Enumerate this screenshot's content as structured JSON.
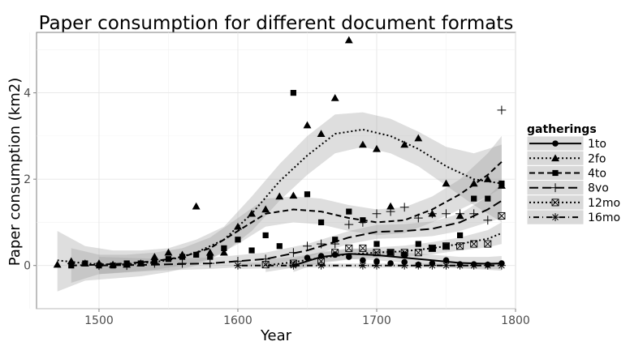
{
  "chart_data": {
    "type": "scatter",
    "title": "Paper consumption for different document formats",
    "xlabel": "Year",
    "ylabel": "Paper consumption (km2)",
    "xlim": [
      1455,
      1800
    ],
    "ylim": [
      -1.0,
      5.4
    ],
    "xticks": [
      1500,
      1600,
      1700,
      1800
    ],
    "yticks": [
      0,
      2,
      4
    ],
    "grid": true,
    "smoothing": "loess with confidence band",
    "legend": {
      "title": "gatherings",
      "placement": "right",
      "entries": [
        "1to",
        "2fo",
        "4to",
        "8vo",
        "12mo",
        "16mo"
      ]
    },
    "series": [
      {
        "name": "1to",
        "marker": "circle",
        "line": "solid",
        "color": "#000000",
        "points": [
          [
            1650,
            0.18
          ],
          [
            1660,
            0.22
          ],
          [
            1670,
            0.25
          ],
          [
            1680,
            0.2
          ],
          [
            1690,
            0.12
          ],
          [
            1700,
            0.1
          ],
          [
            1710,
            0.05
          ],
          [
            1720,
            0.08
          ],
          [
            1730,
            0.02
          ],
          [
            1740,
            0.05
          ],
          [
            1750,
            0.12
          ],
          [
            1760,
            0.03
          ],
          [
            1770,
            0.03
          ],
          [
            1780,
            0.02
          ],
          [
            1790,
            0.05
          ]
        ],
        "smooth": [
          [
            1640,
            0.0
          ],
          [
            1660,
            0.2
          ],
          [
            1680,
            0.27
          ],
          [
            1700,
            0.24
          ],
          [
            1720,
            0.18
          ],
          [
            1740,
            0.12
          ],
          [
            1760,
            0.06
          ],
          [
            1780,
            0.04
          ],
          [
            1790,
            0.05
          ]
        ],
        "band": [
          [
            1640,
            -0.15,
            0.15
          ],
          [
            1660,
            0.08,
            0.32
          ],
          [
            1680,
            0.15,
            0.4
          ],
          [
            1700,
            0.12,
            0.36
          ],
          [
            1720,
            0.06,
            0.3
          ],
          [
            1740,
            0.0,
            0.25
          ],
          [
            1760,
            -0.07,
            0.2
          ],
          [
            1780,
            -0.1,
            0.2
          ],
          [
            1790,
            -0.12,
            0.22
          ]
        ]
      },
      {
        "name": "2fo",
        "marker": "triangle",
        "line": "dotted",
        "color": "#000000",
        "points": [
          [
            1470,
            0.02
          ],
          [
            1480,
            0.1
          ],
          [
            1490,
            0.05
          ],
          [
            1500,
            0.05
          ],
          [
            1510,
            0.02
          ],
          [
            1520,
            0.02
          ],
          [
            1530,
            0.05
          ],
          [
            1540,
            0.2
          ],
          [
            1550,
            0.3
          ],
          [
            1560,
            0.25
          ],
          [
            1570,
            1.37
          ],
          [
            1580,
            0.3
          ],
          [
            1590,
            0.3
          ],
          [
            1600,
            0.9
          ],
          [
            1610,
            1.2
          ],
          [
            1620,
            1.3
          ],
          [
            1630,
            1.6
          ],
          [
            1640,
            1.62
          ],
          [
            1650,
            3.25
          ],
          [
            1660,
            3.05
          ],
          [
            1670,
            3.88
          ],
          [
            1680,
            5.22
          ],
          [
            1690,
            2.8
          ],
          [
            1700,
            2.7
          ],
          [
            1710,
            1.37
          ],
          [
            1720,
            2.8
          ],
          [
            1730,
            2.95
          ],
          [
            1740,
            1.2
          ],
          [
            1750,
            1.9
          ],
          [
            1760,
            1.15
          ],
          [
            1770,
            1.9
          ],
          [
            1780,
            2.0
          ],
          [
            1790,
            1.85
          ]
        ],
        "smooth": [
          [
            1470,
            0.12
          ],
          [
            1490,
            0.05
          ],
          [
            1510,
            0.02
          ],
          [
            1530,
            0.05
          ],
          [
            1550,
            0.12
          ],
          [
            1570,
            0.3
          ],
          [
            1590,
            0.6
          ],
          [
            1610,
            1.2
          ],
          [
            1630,
            1.95
          ],
          [
            1650,
            2.55
          ],
          [
            1670,
            3.05
          ],
          [
            1690,
            3.15
          ],
          [
            1710,
            3.0
          ],
          [
            1730,
            2.7
          ],
          [
            1750,
            2.3
          ],
          [
            1770,
            2.0
          ],
          [
            1790,
            1.9
          ]
        ],
        "band": [
          [
            1470,
            -0.6,
            0.8
          ],
          [
            1490,
            -0.35,
            0.45
          ],
          [
            1510,
            -0.3,
            0.35
          ],
          [
            1530,
            -0.25,
            0.35
          ],
          [
            1550,
            -0.15,
            0.4
          ],
          [
            1570,
            0.0,
            0.6
          ],
          [
            1590,
            0.3,
            0.9
          ],
          [
            1610,
            0.8,
            1.6
          ],
          [
            1630,
            1.5,
            2.35
          ],
          [
            1650,
            2.1,
            3.0
          ],
          [
            1670,
            2.6,
            3.5
          ],
          [
            1690,
            2.75,
            3.55
          ],
          [
            1710,
            2.6,
            3.4
          ],
          [
            1730,
            2.3,
            3.1
          ],
          [
            1750,
            1.85,
            2.75
          ],
          [
            1770,
            1.4,
            2.6
          ],
          [
            1790,
            1.0,
            2.8
          ]
        ]
      },
      {
        "name": "4to",
        "marker": "square",
        "line": "dashed",
        "color": "#000000",
        "points": [
          [
            1480,
            0.0
          ],
          [
            1490,
            0.05
          ],
          [
            1500,
            0.0
          ],
          [
            1510,
            0.0
          ],
          [
            1520,
            0.05
          ],
          [
            1530,
            0.05
          ],
          [
            1540,
            0.1
          ],
          [
            1550,
            0.15
          ],
          [
            1560,
            0.2
          ],
          [
            1570,
            0.25
          ],
          [
            1580,
            0.2
          ],
          [
            1590,
            0.4
          ],
          [
            1600,
            0.6
          ],
          [
            1610,
            0.35
          ],
          [
            1620,
            0.7
          ],
          [
            1630,
            0.45
          ],
          [
            1640,
            4.0
          ],
          [
            1650,
            1.65
          ],
          [
            1660,
            1.0
          ],
          [
            1670,
            0.6
          ],
          [
            1680,
            1.25
          ],
          [
            1690,
            1.05
          ],
          [
            1700,
            0.5
          ],
          [
            1710,
            0.3
          ],
          [
            1720,
            0.25
          ],
          [
            1730,
            0.5
          ],
          [
            1740,
            0.4
          ],
          [
            1750,
            0.45
          ],
          [
            1760,
            0.7
          ],
          [
            1770,
            1.55
          ],
          [
            1780,
            1.55
          ],
          [
            1790,
            1.9
          ]
        ],
        "smooth": [
          [
            1480,
            0.0
          ],
          [
            1500,
            0.02
          ],
          [
            1520,
            0.05
          ],
          [
            1540,
            0.1
          ],
          [
            1560,
            0.2
          ],
          [
            1580,
            0.4
          ],
          [
            1600,
            0.8
          ],
          [
            1620,
            1.2
          ],
          [
            1640,
            1.3
          ],
          [
            1660,
            1.25
          ],
          [
            1680,
            1.1
          ],
          [
            1700,
            1.0
          ],
          [
            1720,
            1.05
          ],
          [
            1740,
            1.3
          ],
          [
            1760,
            1.65
          ],
          [
            1780,
            2.1
          ],
          [
            1790,
            2.4
          ]
        ],
        "band": [
          [
            1480,
            -0.4,
            0.4
          ],
          [
            1500,
            -0.2,
            0.25
          ],
          [
            1520,
            -0.15,
            0.25
          ],
          [
            1540,
            -0.1,
            0.3
          ],
          [
            1560,
            0.0,
            0.4
          ],
          [
            1580,
            0.15,
            0.65
          ],
          [
            1600,
            0.5,
            1.1
          ],
          [
            1620,
            0.9,
            1.55
          ],
          [
            1640,
            1.0,
            1.6
          ],
          [
            1660,
            0.95,
            1.55
          ],
          [
            1680,
            0.8,
            1.4
          ],
          [
            1700,
            0.7,
            1.3
          ],
          [
            1720,
            0.75,
            1.35
          ],
          [
            1740,
            1.0,
            1.6
          ],
          [
            1760,
            1.3,
            2.0
          ],
          [
            1780,
            1.6,
            2.6
          ],
          [
            1790,
            1.8,
            3.0
          ]
        ]
      },
      {
        "name": "8vo",
        "marker": "plus",
        "line": "longdash",
        "color": "#000000",
        "points": [
          [
            1500,
            0.0
          ],
          [
            1520,
            0.0
          ],
          [
            1540,
            0.05
          ],
          [
            1560,
            0.05
          ],
          [
            1580,
            0.05
          ],
          [
            1600,
            0.1
          ],
          [
            1620,
            0.15
          ],
          [
            1640,
            0.3
          ],
          [
            1650,
            0.45
          ],
          [
            1660,
            0.5
          ],
          [
            1670,
            0.5
          ],
          [
            1680,
            0.95
          ],
          [
            1690,
            1.0
          ],
          [
            1700,
            1.2
          ],
          [
            1710,
            1.25
          ],
          [
            1720,
            1.35
          ],
          [
            1730,
            1.1
          ],
          [
            1740,
            1.2
          ],
          [
            1750,
            1.2
          ],
          [
            1760,
            1.2
          ],
          [
            1770,
            1.2
          ],
          [
            1780,
            1.05
          ],
          [
            1790,
            3.6
          ]
        ],
        "smooth": [
          [
            1500,
            0.0
          ],
          [
            1540,
            0.02
          ],
          [
            1580,
            0.05
          ],
          [
            1620,
            0.15
          ],
          [
            1650,
            0.35
          ],
          [
            1680,
            0.65
          ],
          [
            1700,
            0.78
          ],
          [
            1720,
            0.8
          ],
          [
            1740,
            0.85
          ],
          [
            1760,
            1.0
          ],
          [
            1780,
            1.3
          ],
          [
            1790,
            1.5
          ]
        ],
        "band": [
          [
            1500,
            -0.2,
            0.2
          ],
          [
            1540,
            -0.12,
            0.16
          ],
          [
            1580,
            -0.08,
            0.18
          ],
          [
            1620,
            0.0,
            0.3
          ],
          [
            1650,
            0.2,
            0.5
          ],
          [
            1680,
            0.5,
            0.8
          ],
          [
            1700,
            0.62,
            0.94
          ],
          [
            1720,
            0.64,
            0.96
          ],
          [
            1740,
            0.68,
            1.02
          ],
          [
            1760,
            0.8,
            1.2
          ],
          [
            1780,
            1.0,
            1.6
          ],
          [
            1790,
            1.1,
            1.9
          ]
        ]
      },
      {
        "name": "12mo",
        "marker": "boxed-x",
        "line": "dotted",
        "color": "#000000",
        "points": [
          [
            1620,
            0.02
          ],
          [
            1640,
            0.05
          ],
          [
            1660,
            0.1
          ],
          [
            1670,
            0.3
          ],
          [
            1680,
            0.4
          ],
          [
            1690,
            0.4
          ],
          [
            1700,
            0.3
          ],
          [
            1710,
            0.3
          ],
          [
            1720,
            0.3
          ],
          [
            1730,
            0.3
          ],
          [
            1740,
            0.4
          ],
          [
            1750,
            0.45
          ],
          [
            1760,
            0.45
          ],
          [
            1770,
            0.5
          ],
          [
            1780,
            0.5
          ],
          [
            1790,
            1.15
          ]
        ],
        "smooth": [
          [
            1620,
            0.0
          ],
          [
            1640,
            0.08
          ],
          [
            1660,
            0.18
          ],
          [
            1680,
            0.26
          ],
          [
            1700,
            0.3
          ],
          [
            1720,
            0.33
          ],
          [
            1740,
            0.4
          ],
          [
            1760,
            0.5
          ],
          [
            1780,
            0.62
          ],
          [
            1790,
            0.75
          ]
        ],
        "band": [
          [
            1620,
            -0.15,
            0.15
          ],
          [
            1640,
            -0.05,
            0.2
          ],
          [
            1660,
            0.05,
            0.3
          ],
          [
            1680,
            0.14,
            0.38
          ],
          [
            1700,
            0.18,
            0.42
          ],
          [
            1720,
            0.2,
            0.46
          ],
          [
            1740,
            0.26,
            0.54
          ],
          [
            1760,
            0.35,
            0.65
          ],
          [
            1780,
            0.42,
            0.82
          ],
          [
            1790,
            0.5,
            1.0
          ]
        ]
      },
      {
        "name": "16mo",
        "marker": "asterisk",
        "line": "dotdash",
        "color": "#000000",
        "points": [
          [
            1600,
            0.0
          ],
          [
            1640,
            0.0
          ],
          [
            1660,
            0.0
          ],
          [
            1690,
            0.0
          ],
          [
            1700,
            0.0
          ],
          [
            1720,
            0.0
          ],
          [
            1730,
            0.0
          ],
          [
            1740,
            0.0
          ],
          [
            1750,
            0.0
          ],
          [
            1760,
            0.0
          ],
          [
            1770,
            0.0
          ],
          [
            1780,
            0.0
          ],
          [
            1790,
            0.0
          ]
        ],
        "smooth": [
          [
            1600,
            0.0
          ],
          [
            1640,
            0.0
          ],
          [
            1680,
            0.0
          ],
          [
            1720,
            0.0
          ],
          [
            1760,
            0.0
          ],
          [
            1790,
            0.0
          ]
        ],
        "band": [
          [
            1600,
            -0.08,
            0.08
          ],
          [
            1640,
            -0.05,
            0.05
          ],
          [
            1680,
            -0.05,
            0.05
          ],
          [
            1720,
            -0.05,
            0.05
          ],
          [
            1760,
            -0.06,
            0.06
          ],
          [
            1790,
            -0.08,
            0.08
          ]
        ]
      }
    ]
  }
}
